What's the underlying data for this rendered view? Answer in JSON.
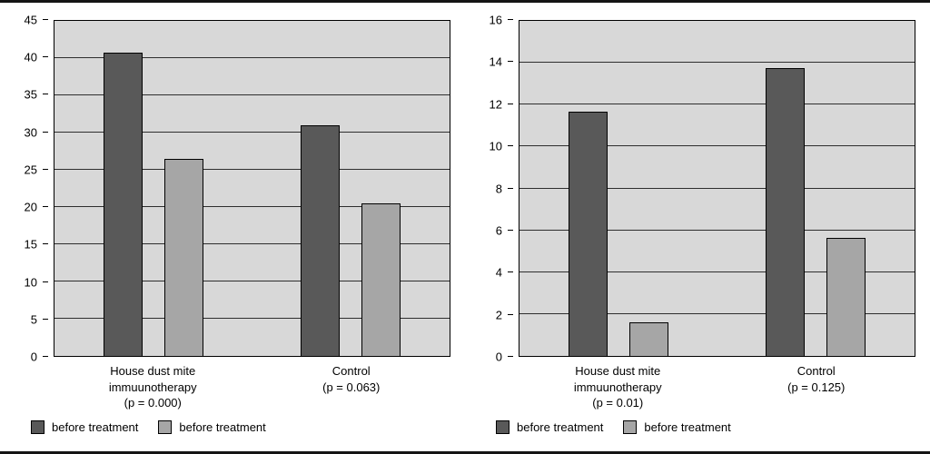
{
  "figure": {
    "background": "#ffffff",
    "edge_color": "#141414"
  },
  "chart_data": [
    {
      "type": "bar",
      "title": "",
      "xlabel": "",
      "ylabel": "",
      "categories": [
        "House dust mite\nimmuunotherapy\n(p = 0.000)",
        "Control\n(p = 0.063)"
      ],
      "series": [
        {
          "name": "before treatment",
          "color": "#595959",
          "values": [
            40.7,
            31.0
          ]
        },
        {
          "name": "before treatment",
          "color": "#a6a6a6",
          "values": [
            26.5,
            20.5
          ]
        }
      ],
      "ylim": [
        0,
        45
      ],
      "ytick_step": 5,
      "grid": true,
      "plot_bg": "#d8d8d8",
      "legend_position": "bottom-left"
    },
    {
      "type": "bar",
      "title": "",
      "xlabel": "",
      "ylabel": "",
      "categories": [
        "House dust mite\nimmuunotherapy\n(p = 0.01)",
        "Control\n(p = 0.125)"
      ],
      "series": [
        {
          "name": "before treatment",
          "color": "#595959",
          "values": [
            11.65,
            13.75
          ]
        },
        {
          "name": "before treatment",
          "color": "#a6a6a6",
          "values": [
            1.6,
            5.65
          ]
        }
      ],
      "ylim": [
        0,
        16
      ],
      "ytick_step": 2,
      "grid": true,
      "plot_bg": "#d8d8d8",
      "legend_position": "bottom-left"
    }
  ]
}
